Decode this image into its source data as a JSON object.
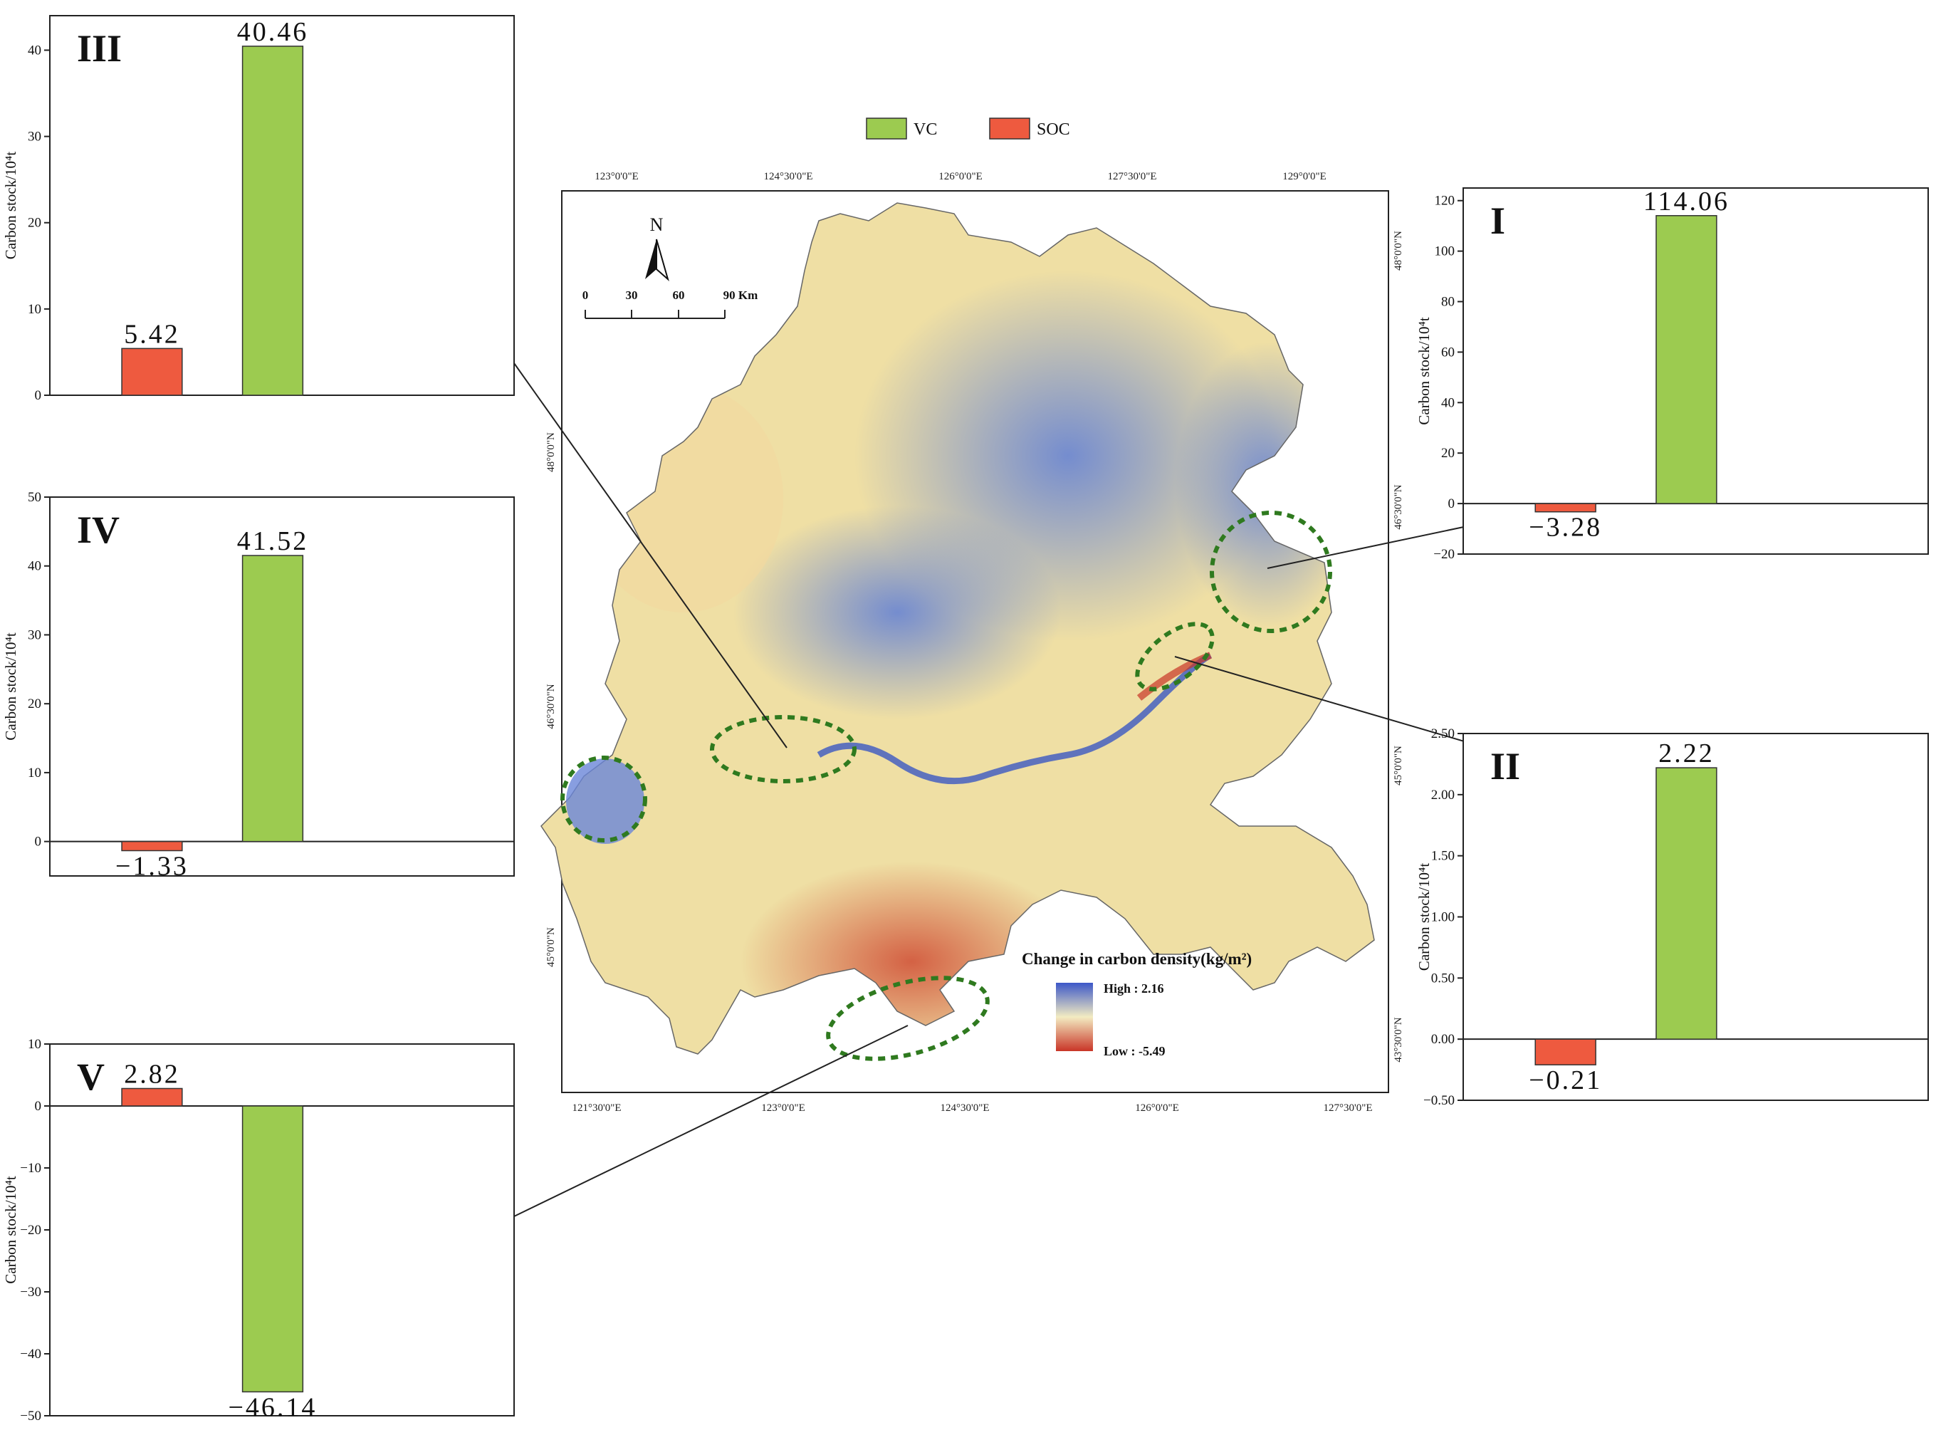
{
  "legend": {
    "items": [
      {
        "label": "VC",
        "color": "#9ccb50"
      },
      {
        "label": "SOC",
        "color": "#ee5a3f"
      }
    ]
  },
  "map": {
    "top_labels": [
      "123°0'0\"E",
      "124°30'0\"E",
      "126°0'0\"E",
      "127°30'0\"E",
      "129°0'0\"E"
    ],
    "bottom_labels": [
      "121°30'0\"E",
      "123°0'0\"E",
      "124°30'0\"E",
      "126°0'0\"E",
      "127°30'0\"E"
    ],
    "left_labels": [
      "48°0'0\"N",
      "46°30'0\"N",
      "45°0'0\"N"
    ],
    "right_labels": [
      "48°0'0\"N",
      "46°30'0\"N",
      "45°0'0\"N",
      "43°30'0\"N"
    ],
    "north": "N",
    "scale_labels": [
      "0",
      "30",
      "60",
      "90 Km"
    ],
    "density_title": "Change in carbon density(kg/m²)",
    "high_label": "High : 2.16",
    "low_label": "Low : -5.49",
    "colors": {
      "high": "#3c57c8",
      "mid": "#f3ecc2",
      "low": "#c93527",
      "ellipse": "#2f7a1f"
    }
  },
  "chart_data": [
    {
      "type": "bar",
      "panel": "I",
      "categories": [
        "SOC",
        "VC"
      ],
      "values": [
        -3.28,
        114.06
      ],
      "value_labels": [
        "−3.28",
        "114.06"
      ],
      "ylabel": "Carbon stock/10⁴t",
      "ylim": [
        -20,
        125
      ],
      "yticks": [
        -20,
        0,
        20,
        40,
        60,
        80,
        100,
        120
      ],
      "ytick_labels": [
        "−20",
        "0",
        "20",
        "40",
        "60",
        "80",
        "100",
        "120"
      ]
    },
    {
      "type": "bar",
      "panel": "II",
      "categories": [
        "SOC",
        "VC"
      ],
      "values": [
        -0.21,
        2.22
      ],
      "value_labels": [
        "−0.21",
        "2.22"
      ],
      "ylabel": "Carbon stock/10⁴t",
      "ylim": [
        -0.5,
        2.5
      ],
      "yticks": [
        -0.5,
        0,
        0.5,
        1,
        1.5,
        2,
        2.5
      ],
      "ytick_labels": [
        "−0.50",
        "0.00",
        "0.50",
        "1.00",
        "1.50",
        "2.00",
        "2.50"
      ]
    },
    {
      "type": "bar",
      "panel": "III",
      "categories": [
        "SOC",
        "VC"
      ],
      "values": [
        5.42,
        40.46
      ],
      "value_labels": [
        "5.42",
        "40.46"
      ],
      "ylabel": "Carbon stock/10⁴t",
      "ylim": [
        0,
        44
      ],
      "yticks": [
        0,
        10,
        20,
        30,
        40
      ],
      "ytick_labels": [
        "0",
        "10",
        "20",
        "30",
        "40"
      ]
    },
    {
      "type": "bar",
      "panel": "IV",
      "categories": [
        "SOC",
        "VC"
      ],
      "values": [
        -1.33,
        41.52
      ],
      "value_labels": [
        "−1.33",
        "41.52"
      ],
      "ylabel": "Carbon stock/10⁴t",
      "ylim": [
        -5,
        50
      ],
      "yticks": [
        0,
        10,
        20,
        30,
        40,
        50
      ],
      "ytick_labels": [
        "0",
        "10",
        "20",
        "30",
        "40",
        "50"
      ]
    },
    {
      "type": "bar",
      "panel": "V",
      "categories": [
        "SOC",
        "VC"
      ],
      "values": [
        2.82,
        -46.14
      ],
      "value_labels": [
        "2.82",
        "−46.14"
      ],
      "ylabel": "Carbon stock/10⁴t",
      "ylim": [
        -50,
        10
      ],
      "yticks": [
        -50,
        -40,
        -30,
        -20,
        -10,
        0,
        10
      ],
      "ytick_labels": [
        "−50",
        "−40",
        "−30",
        "−20",
        "−10",
        "0",
        "10"
      ]
    }
  ]
}
